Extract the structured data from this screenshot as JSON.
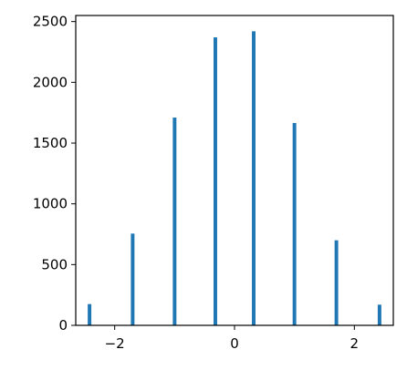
{
  "chart_data": {
    "type": "bar",
    "title": "",
    "xlabel": "",
    "ylabel": "",
    "xlim": [
      -2.65,
      2.65
    ],
    "ylim": [
      0,
      2550
    ],
    "grid": false,
    "bar_color": "#1f77b4",
    "bar_width": 0.06,
    "x": [
      -2.42,
      -1.7,
      -1.0,
      -0.32,
      0.32,
      1.0,
      1.7,
      2.42
    ],
    "values": [
      175,
      755,
      1710,
      2370,
      2420,
      1665,
      700,
      170
    ],
    "xticks": [
      -2,
      0,
      2
    ],
    "xtick_labels": [
      "−2",
      "0",
      "2"
    ],
    "yticks": [
      0,
      500,
      1000,
      1500,
      2000,
      2500
    ],
    "ytick_labels": [
      "0",
      "500",
      "1000",
      "1500",
      "2000",
      "2500"
    ]
  }
}
